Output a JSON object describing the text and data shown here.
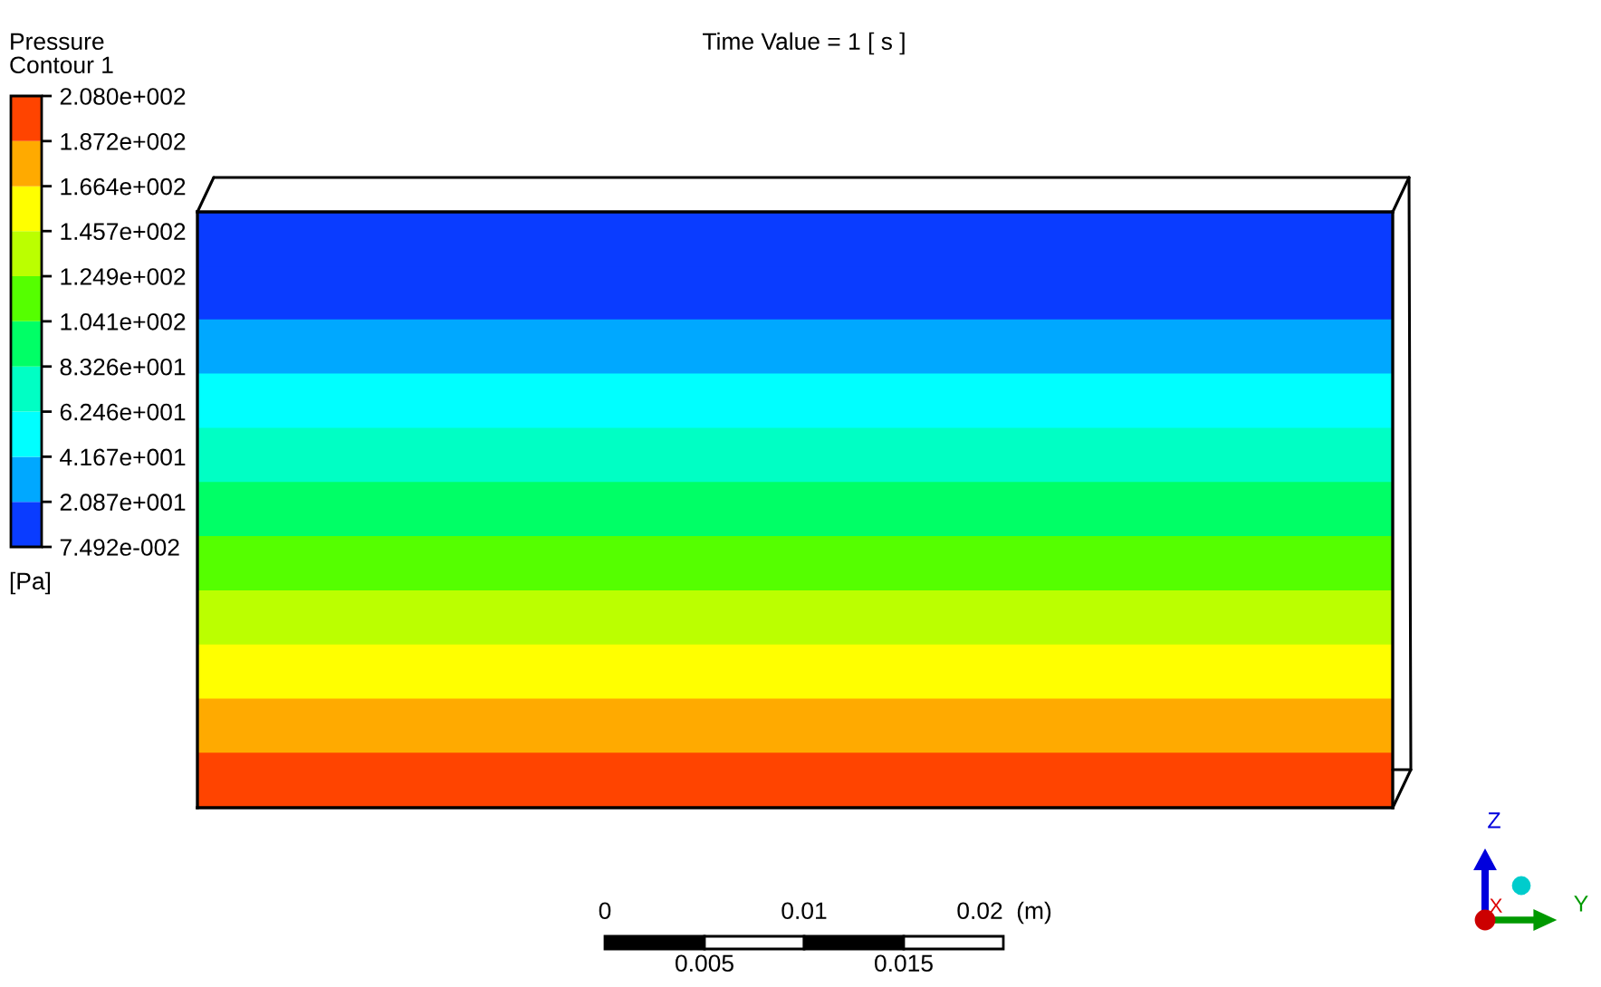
{
  "chart_data": {
    "type": "heatmap",
    "title": "Time Value = 1 [ s ]",
    "clabel": "Pressure",
    "annotations": [
      "Contour 1",
      "[Pa]",
      "0",
      "0.01",
      "0.02",
      "(m)",
      "0.005",
      "0.015",
      "Z",
      "Y",
      "X"
    ],
    "categories": [
      null
    ],
    "y_categories": [
      null,
      null,
      null,
      null,
      null,
      null,
      null,
      null,
      null,
      null,
      null
    ],
    "cells": [
      [
        10
      ],
      [
        10
      ],
      [
        31
      ],
      [
        52
      ],
      [
        73
      ],
      [
        94
      ],
      [
        115
      ],
      [
        135
      ],
      [
        156
      ],
      [
        177
      ],
      [
        198
      ]
    ],
    "colors": [
      "#0a3cff",
      "#00a8ff",
      "#00ffff",
      "#00ffc4",
      "#00ff66",
      "#55ff00",
      "#bbff00",
      "#ffff00",
      "#ffaa00",
      "#ff4400"
    ],
    "clim": [
      0.07492,
      208.0
    ],
    "cticks": [
      {
        "value": 0.07492,
        "label": "7.492e-002"
      },
      {
        "value": 20.87,
        "label": "2.087e+001"
      },
      {
        "value": 41.67,
        "label": "4.167e+001"
      },
      {
        "value": 62.46,
        "label": "6.246e+001"
      },
      {
        "value": 83.26,
        "label": "8.326e+001"
      },
      {
        "value": 104.1,
        "label": "1.041e+002"
      },
      {
        "value": 124.9,
        "label": "1.249e+002"
      },
      {
        "value": 145.7,
        "label": "1.457e+002"
      },
      {
        "value": 166.4,
        "label": "1.664e+002"
      },
      {
        "value": 187.2,
        "label": "1.872e+002"
      },
      {
        "value": 208.0,
        "label": "2.080e+002"
      }
    ]
  }
}
